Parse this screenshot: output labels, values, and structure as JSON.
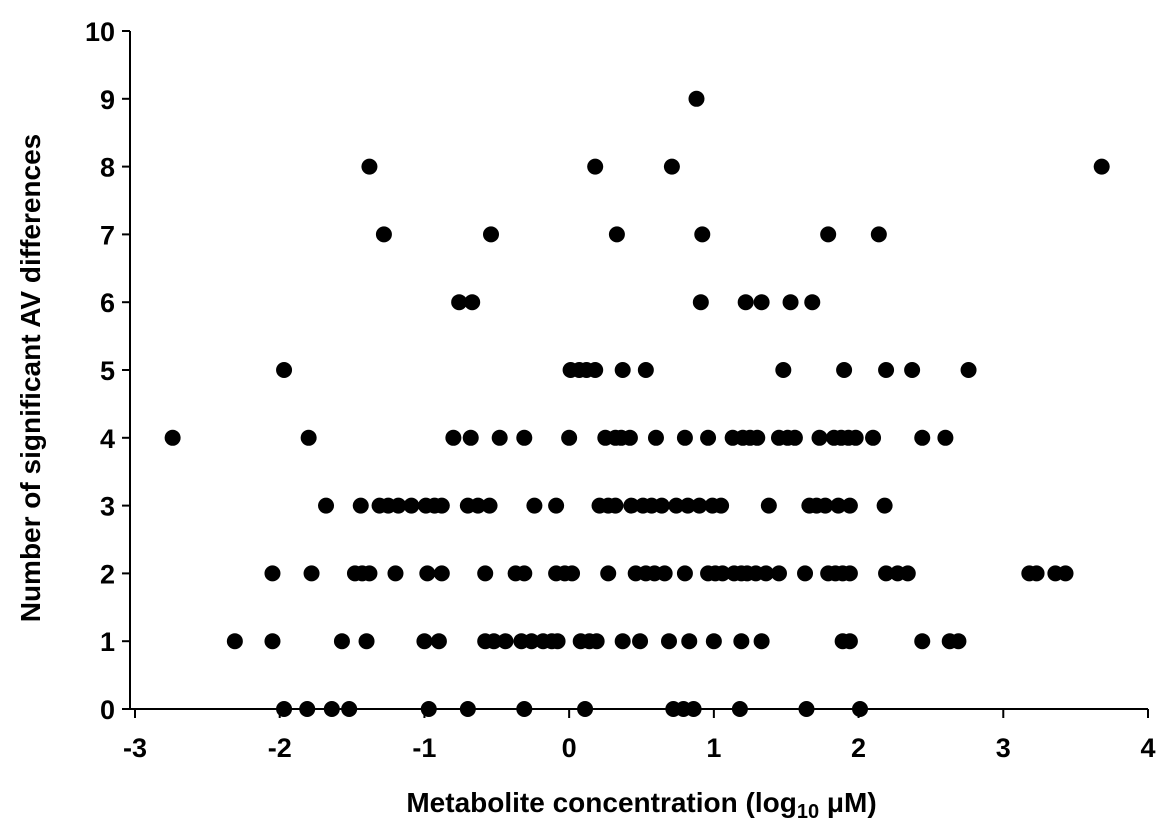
{
  "chart_data": {
    "type": "scatter",
    "xlabel_main": "Metabolite concentration (log",
    "xlabel_sub": "10",
    "xlabel_tail": " μM)",
    "ylabel": "Number of significant AV differences",
    "xlim": [
      -3,
      4
    ],
    "ylim": [
      0,
      10
    ],
    "x_ticks": [
      -3,
      -2,
      -1,
      0,
      1,
      2,
      3,
      4
    ],
    "y_ticks": [
      0,
      1,
      2,
      3,
      4,
      5,
      6,
      7,
      8,
      9,
      10
    ],
    "grid": false,
    "legend": "none",
    "marker_color": "#000000",
    "points": [
      {
        "x": -1.97,
        "y": 0
      },
      {
        "x": -1.81,
        "y": 0
      },
      {
        "x": -1.64,
        "y": 0
      },
      {
        "x": -1.52,
        "y": 0
      },
      {
        "x": -0.97,
        "y": 0
      },
      {
        "x": -0.7,
        "y": 0
      },
      {
        "x": -0.31,
        "y": 0
      },
      {
        "x": 0.11,
        "y": 0
      },
      {
        "x": 0.72,
        "y": 0
      },
      {
        "x": 0.79,
        "y": 0
      },
      {
        "x": 0.86,
        "y": 0
      },
      {
        "x": 1.18,
        "y": 0
      },
      {
        "x": 1.64,
        "y": 0
      },
      {
        "x": 2.01,
        "y": 0
      },
      {
        "x": -2.31,
        "y": 1
      },
      {
        "x": -2.05,
        "y": 1
      },
      {
        "x": -1.57,
        "y": 1
      },
      {
        "x": -1.4,
        "y": 1
      },
      {
        "x": -1.0,
        "y": 1
      },
      {
        "x": -0.9,
        "y": 1
      },
      {
        "x": -0.58,
        "y": 1
      },
      {
        "x": -0.52,
        "y": 1
      },
      {
        "x": -0.44,
        "y": 1
      },
      {
        "x": -0.33,
        "y": 1
      },
      {
        "x": -0.26,
        "y": 1
      },
      {
        "x": -0.18,
        "y": 1
      },
      {
        "x": -0.12,
        "y": 1
      },
      {
        "x": -0.08,
        "y": 1
      },
      {
        "x": 0.08,
        "y": 1
      },
      {
        "x": 0.14,
        "y": 1
      },
      {
        "x": 0.19,
        "y": 1
      },
      {
        "x": 0.37,
        "y": 1
      },
      {
        "x": 0.49,
        "y": 1
      },
      {
        "x": 0.69,
        "y": 1
      },
      {
        "x": 0.83,
        "y": 1
      },
      {
        "x": 1.0,
        "y": 1
      },
      {
        "x": 1.19,
        "y": 1
      },
      {
        "x": 1.33,
        "y": 1
      },
      {
        "x": 1.89,
        "y": 1
      },
      {
        "x": 1.94,
        "y": 1
      },
      {
        "x": 2.44,
        "y": 1
      },
      {
        "x": 2.63,
        "y": 1
      },
      {
        "x": 2.69,
        "y": 1
      },
      {
        "x": -2.05,
        "y": 2
      },
      {
        "x": -1.78,
        "y": 2
      },
      {
        "x": -1.48,
        "y": 2
      },
      {
        "x": -1.43,
        "y": 2
      },
      {
        "x": -1.38,
        "y": 2
      },
      {
        "x": -1.2,
        "y": 2
      },
      {
        "x": -0.98,
        "y": 2
      },
      {
        "x": -0.88,
        "y": 2
      },
      {
        "x": -0.58,
        "y": 2
      },
      {
        "x": -0.37,
        "y": 2
      },
      {
        "x": -0.31,
        "y": 2
      },
      {
        "x": -0.09,
        "y": 2
      },
      {
        "x": -0.03,
        "y": 2
      },
      {
        "x": 0.02,
        "y": 2
      },
      {
        "x": 0.27,
        "y": 2
      },
      {
        "x": 0.46,
        "y": 2
      },
      {
        "x": 0.53,
        "y": 2
      },
      {
        "x": 0.59,
        "y": 2
      },
      {
        "x": 0.66,
        "y": 2
      },
      {
        "x": 0.8,
        "y": 2
      },
      {
        "x": 0.96,
        "y": 2
      },
      {
        "x": 1.01,
        "y": 2
      },
      {
        "x": 1.06,
        "y": 2
      },
      {
        "x": 1.14,
        "y": 2
      },
      {
        "x": 1.19,
        "y": 2
      },
      {
        "x": 1.23,
        "y": 2
      },
      {
        "x": 1.29,
        "y": 2
      },
      {
        "x": 1.36,
        "y": 2
      },
      {
        "x": 1.45,
        "y": 2
      },
      {
        "x": 1.63,
        "y": 2
      },
      {
        "x": 1.79,
        "y": 2
      },
      {
        "x": 1.84,
        "y": 2
      },
      {
        "x": 1.89,
        "y": 2
      },
      {
        "x": 1.94,
        "y": 2
      },
      {
        "x": 2.19,
        "y": 2
      },
      {
        "x": 2.27,
        "y": 2
      },
      {
        "x": 2.34,
        "y": 2
      },
      {
        "x": 3.18,
        "y": 2
      },
      {
        "x": 3.23,
        "y": 2
      },
      {
        "x": 3.36,
        "y": 2
      },
      {
        "x": 3.43,
        "y": 2
      },
      {
        "x": -1.68,
        "y": 3
      },
      {
        "x": -1.44,
        "y": 3
      },
      {
        "x": -1.31,
        "y": 3
      },
      {
        "x": -1.25,
        "y": 3
      },
      {
        "x": -1.18,
        "y": 3
      },
      {
        "x": -1.09,
        "y": 3
      },
      {
        "x": -0.99,
        "y": 3
      },
      {
        "x": -0.93,
        "y": 3
      },
      {
        "x": -0.88,
        "y": 3
      },
      {
        "x": -0.7,
        "y": 3
      },
      {
        "x": -0.63,
        "y": 3
      },
      {
        "x": -0.55,
        "y": 3
      },
      {
        "x": -0.24,
        "y": 3
      },
      {
        "x": -0.09,
        "y": 3
      },
      {
        "x": 0.21,
        "y": 3
      },
      {
        "x": 0.27,
        "y": 3
      },
      {
        "x": 0.32,
        "y": 3
      },
      {
        "x": 0.43,
        "y": 3
      },
      {
        "x": 0.51,
        "y": 3
      },
      {
        "x": 0.57,
        "y": 3
      },
      {
        "x": 0.64,
        "y": 3
      },
      {
        "x": 0.74,
        "y": 3
      },
      {
        "x": 0.82,
        "y": 3
      },
      {
        "x": 0.9,
        "y": 3
      },
      {
        "x": 0.99,
        "y": 3
      },
      {
        "x": 1.05,
        "y": 3
      },
      {
        "x": 1.38,
        "y": 3
      },
      {
        "x": 1.66,
        "y": 3
      },
      {
        "x": 1.71,
        "y": 3
      },
      {
        "x": 1.77,
        "y": 3
      },
      {
        "x": 1.86,
        "y": 3
      },
      {
        "x": 1.94,
        "y": 3
      },
      {
        "x": 2.18,
        "y": 3
      },
      {
        "x": -2.74,
        "y": 4
      },
      {
        "x": -1.8,
        "y": 4
      },
      {
        "x": -0.8,
        "y": 4
      },
      {
        "x": -0.68,
        "y": 4
      },
      {
        "x": -0.48,
        "y": 4
      },
      {
        "x": -0.31,
        "y": 4
      },
      {
        "x": 0.0,
        "y": 4
      },
      {
        "x": 0.25,
        "y": 4
      },
      {
        "x": 0.32,
        "y": 4
      },
      {
        "x": 0.36,
        "y": 4
      },
      {
        "x": 0.42,
        "y": 4
      },
      {
        "x": 0.6,
        "y": 4
      },
      {
        "x": 0.8,
        "y": 4
      },
      {
        "x": 0.96,
        "y": 4
      },
      {
        "x": 1.13,
        "y": 4
      },
      {
        "x": 1.2,
        "y": 4
      },
      {
        "x": 1.25,
        "y": 4
      },
      {
        "x": 1.3,
        "y": 4
      },
      {
        "x": 1.45,
        "y": 4
      },
      {
        "x": 1.51,
        "y": 4
      },
      {
        "x": 1.56,
        "y": 4
      },
      {
        "x": 1.73,
        "y": 4
      },
      {
        "x": 1.83,
        "y": 4
      },
      {
        "x": 1.88,
        "y": 4
      },
      {
        "x": 1.93,
        "y": 4
      },
      {
        "x": 1.98,
        "y": 4
      },
      {
        "x": 2.1,
        "y": 4
      },
      {
        "x": 2.44,
        "y": 4
      },
      {
        "x": 2.6,
        "y": 4
      },
      {
        "x": -1.97,
        "y": 5
      },
      {
        "x": 0.01,
        "y": 5
      },
      {
        "x": 0.07,
        "y": 5
      },
      {
        "x": 0.12,
        "y": 5
      },
      {
        "x": 0.18,
        "y": 5
      },
      {
        "x": 0.37,
        "y": 5
      },
      {
        "x": 0.53,
        "y": 5
      },
      {
        "x": 1.48,
        "y": 5
      },
      {
        "x": 1.9,
        "y": 5
      },
      {
        "x": 2.19,
        "y": 5
      },
      {
        "x": 2.37,
        "y": 5
      },
      {
        "x": 2.76,
        "y": 5
      },
      {
        "x": -0.76,
        "y": 6
      },
      {
        "x": -0.67,
        "y": 6
      },
      {
        "x": 0.91,
        "y": 6
      },
      {
        "x": 1.22,
        "y": 6
      },
      {
        "x": 1.33,
        "y": 6
      },
      {
        "x": 1.53,
        "y": 6
      },
      {
        "x": 1.68,
        "y": 6
      },
      {
        "x": -1.28,
        "y": 7
      },
      {
        "x": -0.54,
        "y": 7
      },
      {
        "x": 0.33,
        "y": 7
      },
      {
        "x": 0.92,
        "y": 7
      },
      {
        "x": 1.79,
        "y": 7
      },
      {
        "x": 2.14,
        "y": 7
      },
      {
        "x": -1.38,
        "y": 8
      },
      {
        "x": 0.18,
        "y": 8
      },
      {
        "x": 0.71,
        "y": 8
      },
      {
        "x": 3.68,
        "y": 8
      },
      {
        "x": 0.88,
        "y": 9
      }
    ]
  }
}
